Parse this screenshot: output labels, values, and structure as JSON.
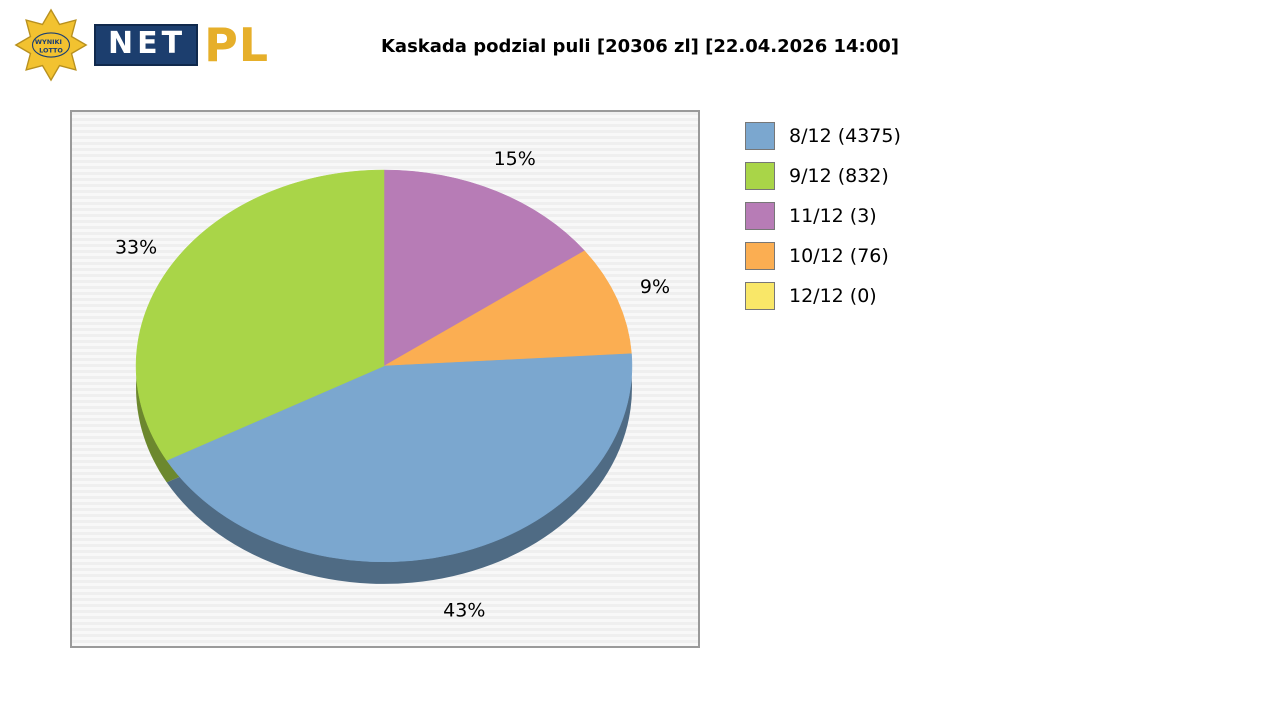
{
  "header": {
    "title": "Kaskada podzial puli [20306 zl] [22.04.2026 14:00]",
    "logo": {
      "star_line1": "WYNIKI",
      "star_line2": "LOTTO",
      "net": "NET",
      "pl": "PL"
    }
  },
  "chart_data": {
    "type": "pie",
    "title": "Kaskada podzial puli [20306 zl] [22.04.2026 14:00]",
    "legend_position": "right",
    "effect": "3d",
    "slices": [
      {
        "label": "8/12 (4375)",
        "tier": "8/12",
        "count": 4375,
        "percent": 43,
        "color": "#7BA7CF"
      },
      {
        "label": "9/12 (832)",
        "tier": "9/12",
        "count": 832,
        "percent": 33,
        "color": "#A9D548"
      },
      {
        "label": "11/12 (3)",
        "tier": "11/12",
        "count": 3,
        "percent": 15,
        "color": "#B77CB6"
      },
      {
        "label": "10/12 (76)",
        "tier": "10/12",
        "count": 76,
        "percent": 9,
        "color": "#FBAE52"
      },
      {
        "label": "12/12 (0)",
        "tier": "12/12",
        "count": 0,
        "percent": 0,
        "color": "#F9E768"
      }
    ],
    "pie_order": [
      2,
      3,
      0,
      1,
      4
    ],
    "start_angle_deg": -90,
    "percent_labels": [
      "43%",
      "33%",
      "15%",
      "9%"
    ]
  }
}
